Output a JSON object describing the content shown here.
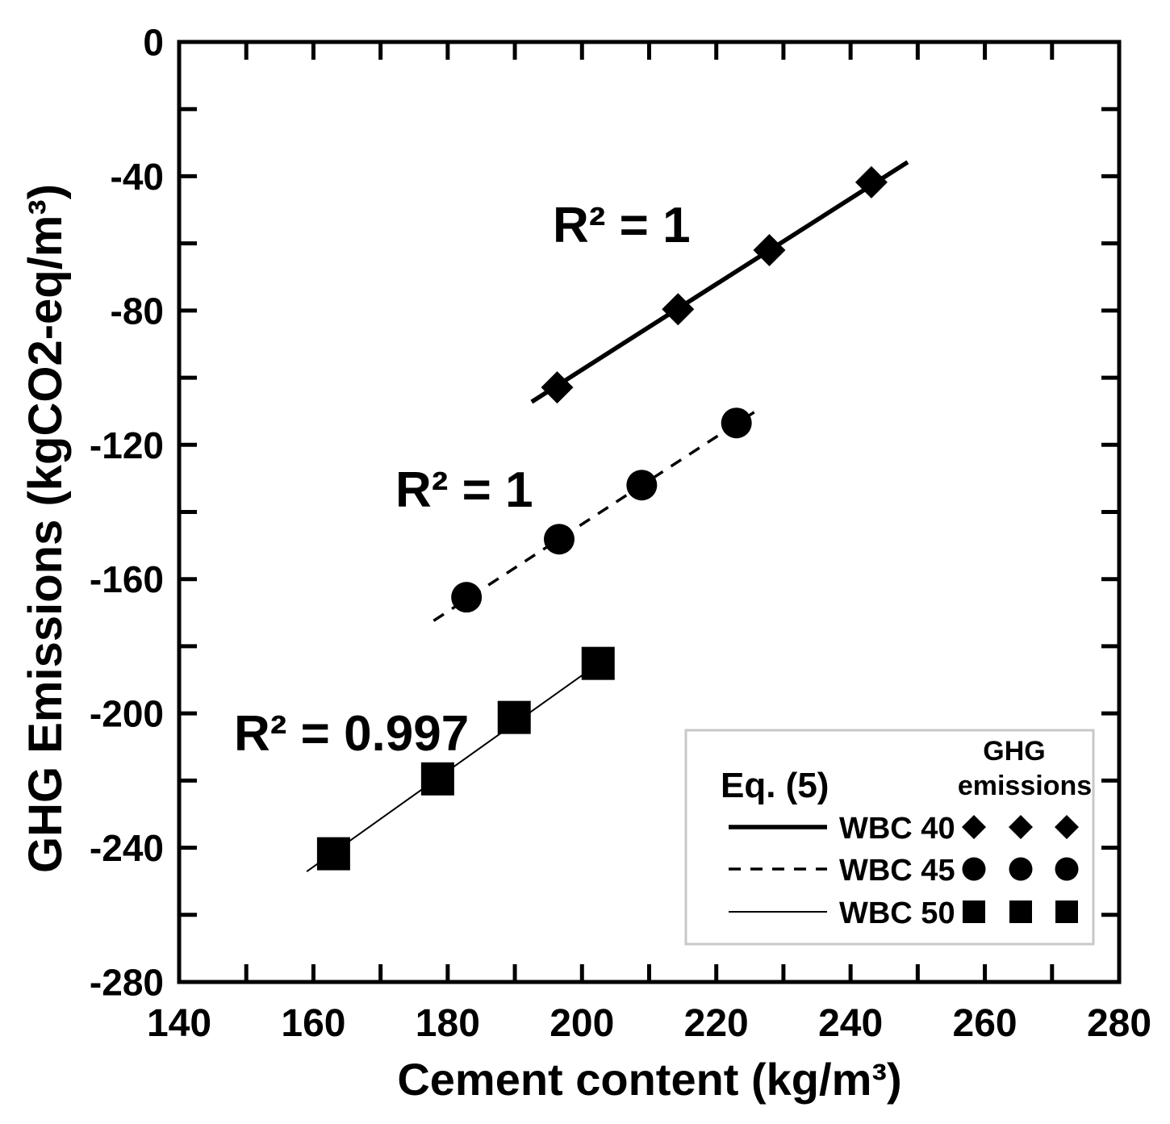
{
  "colors": {
    "ink": "#000000",
    "background": "#ffffff",
    "legend_border": "#c8c8c8"
  },
  "chart_data": {
    "type": "scatter",
    "title": "",
    "xlabel": "Cement content (kg/m³)",
    "ylabel": "GHG Emissions (kgCO2-eq/m³)",
    "xlim": [
      140,
      280
    ],
    "ylim": [
      -280,
      0
    ],
    "grid": false,
    "x_ticks": [
      140,
      160,
      180,
      200,
      220,
      240,
      260,
      280
    ],
    "x_tick_labels": [
      "140",
      "160",
      "180",
      "200",
      "220",
      "240",
      "260",
      "280"
    ],
    "x_minor_step": 10,
    "y_ticks": [
      0,
      -40,
      -80,
      -120,
      -160,
      -200,
      -240,
      -280
    ],
    "y_tick_labels": [
      "0",
      "-40",
      "-80",
      "-120",
      "-160",
      "-200",
      "-240",
      "-280"
    ],
    "y_minor_step": 20,
    "series": [
      {
        "name": "WBC 40",
        "marker": "diamond",
        "line_style": "solid-thick",
        "x": [
          196.3,
          214.3,
          227.9,
          243.1
        ],
        "y": [
          -102.9,
          -79.6,
          -62.0,
          -41.8
        ],
        "fit": {
          "x": [
            192.5,
            248.5
          ],
          "y": [
            -107.2,
            -35.8
          ]
        },
        "r2_label": "R² = 1"
      },
      {
        "name": "WBC 45",
        "marker": "circle",
        "line_style": "dashed",
        "x": [
          182.8,
          196.6,
          208.9,
          223.0
        ],
        "y": [
          -165.4,
          -148.1,
          -132.0,
          -113.5
        ],
        "fit": {
          "x": [
            177.9,
            226.7
          ],
          "y": [
            -172.4,
            -108.9
          ]
        },
        "r2_label": "R² = 1"
      },
      {
        "name": "WBC 50",
        "marker": "square",
        "line_style": "solid-thin",
        "x": [
          163.0,
          178.5,
          189.9,
          202.4
        ],
        "y": [
          -241.8,
          -219.5,
          -201.2,
          -185.1
        ],
        "fit": {
          "x": [
            159.0,
            202.5
          ],
          "y": [
            -247.1,
            -185.1
          ]
        },
        "r2_label": "R² = 0.997"
      }
    ],
    "legend": {
      "placement": "bottom-right",
      "title": "Eq. (5)",
      "marker_header": [
        "GHG",
        "emissions"
      ]
    }
  }
}
